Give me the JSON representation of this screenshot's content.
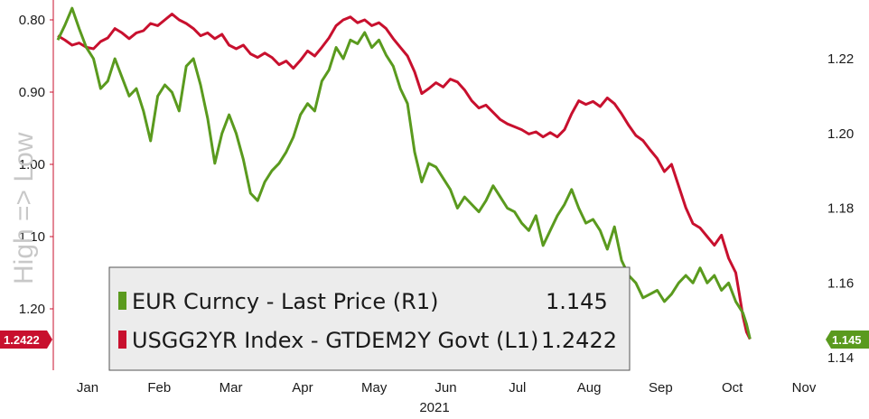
{
  "chart_data": {
    "type": "line",
    "ylabel_left": "High => Low",
    "xlabel": "2021",
    "x_ticks": [
      "Jan",
      "Feb",
      "Mar",
      "Apr",
      "May",
      "Jun",
      "Jul",
      "Aug",
      "Sep",
      "Oct",
      "Nov"
    ],
    "left_axis": {
      "ticks": [
        "0.80",
        "0.90",
        "1.00",
        "1.10",
        "1.20"
      ],
      "inverted": true,
      "range": [
        0.76,
        1.27
      ]
    },
    "right_axis": {
      "ticks": [
        "1.22",
        "1.20",
        "1.18",
        "1.16",
        "1.14"
      ],
      "range": [
        1.137,
        1.237
      ]
    },
    "series": [
      {
        "name": "EUR Curncy - Last Price (R1)",
        "axis": "right",
        "color": "#5a9a1e",
        "last_value": "1.145",
        "values": [
          [
            0,
            1.225
          ],
          [
            0.1,
            1.229
          ],
          [
            0.2,
            1.2335
          ],
          [
            0.3,
            1.228
          ],
          [
            0.4,
            1.223
          ],
          [
            0.5,
            1.22
          ],
          [
            0.6,
            1.212
          ],
          [
            0.7,
            1.214
          ],
          [
            0.8,
            1.22
          ],
          [
            0.9,
            1.215
          ],
          [
            1.0,
            1.21
          ],
          [
            1.1,
            1.212
          ],
          [
            1.2,
            1.206
          ],
          [
            1.3,
            1.198
          ],
          [
            1.4,
            1.21
          ],
          [
            1.5,
            1.213
          ],
          [
            1.6,
            1.211
          ],
          [
            1.7,
            1.206
          ],
          [
            1.8,
            1.218
          ],
          [
            1.9,
            1.22
          ],
          [
            2.0,
            1.213
          ],
          [
            2.1,
            1.204
          ],
          [
            2.2,
            1.192
          ],
          [
            2.3,
            1.2
          ],
          [
            2.4,
            1.205
          ],
          [
            2.5,
            1.2
          ],
          [
            2.6,
            1.193
          ],
          [
            2.7,
            1.184
          ],
          [
            2.8,
            1.182
          ],
          [
            2.9,
            1.187
          ],
          [
            3.0,
            1.19
          ],
          [
            3.1,
            1.192
          ],
          [
            3.2,
            1.195
          ],
          [
            3.3,
            1.199
          ],
          [
            3.4,
            1.205
          ],
          [
            3.5,
            1.208
          ],
          [
            3.6,
            1.206
          ],
          [
            3.7,
            1.214
          ],
          [
            3.8,
            1.217
          ],
          [
            3.9,
            1.223
          ],
          [
            4.0,
            1.22
          ],
          [
            4.1,
            1.225
          ],
          [
            4.2,
            1.224
          ],
          [
            4.3,
            1.227
          ],
          [
            4.4,
            1.223
          ],
          [
            4.5,
            1.225
          ],
          [
            4.6,
            1.221
          ],
          [
            4.7,
            1.218
          ],
          [
            4.8,
            1.212
          ],
          [
            4.9,
            1.208
          ],
          [
            5.0,
            1.195
          ],
          [
            5.1,
            1.187
          ],
          [
            5.2,
            1.192
          ],
          [
            5.3,
            1.191
          ],
          [
            5.4,
            1.188
          ],
          [
            5.5,
            1.185
          ],
          [
            5.6,
            1.18
          ],
          [
            5.7,
            1.183
          ],
          [
            5.8,
            1.181
          ],
          [
            5.9,
            1.179
          ],
          [
            6.0,
            1.182
          ],
          [
            6.1,
            1.186
          ],
          [
            6.2,
            1.183
          ],
          [
            6.3,
            1.18
          ],
          [
            6.4,
            1.179
          ],
          [
            6.5,
            1.176
          ],
          [
            6.6,
            1.174
          ],
          [
            6.7,
            1.178
          ],
          [
            6.8,
            1.17
          ],
          [
            6.9,
            1.174
          ],
          [
            7.0,
            1.178
          ],
          [
            7.1,
            1.181
          ],
          [
            7.2,
            1.185
          ],
          [
            7.3,
            1.18
          ],
          [
            7.4,
            1.176
          ],
          [
            7.5,
            1.177
          ],
          [
            7.6,
            1.174
          ],
          [
            7.7,
            1.169
          ],
          [
            7.8,
            1.175
          ],
          [
            7.9,
            1.166
          ],
          [
            8.0,
            1.162
          ],
          [
            8.1,
            1.16
          ],
          [
            8.2,
            1.156
          ],
          [
            8.3,
            1.157
          ],
          [
            8.4,
            1.158
          ],
          [
            8.5,
            1.155
          ],
          [
            8.6,
            1.157
          ],
          [
            8.7,
            1.16
          ],
          [
            8.8,
            1.162
          ],
          [
            8.9,
            1.16
          ],
          [
            9.0,
            1.164
          ],
          [
            9.1,
            1.16
          ],
          [
            9.2,
            1.162
          ],
          [
            9.3,
            1.158
          ],
          [
            9.4,
            1.16
          ],
          [
            9.5,
            1.155
          ],
          [
            9.6,
            1.152
          ],
          [
            9.65,
            1.149
          ],
          [
            9.7,
            1.145
          ]
        ]
      },
      {
        "name": "USGG2YR Index - GTDEM2Y Govt (L1)",
        "axis": "left",
        "color": "#c8102e",
        "last_value": "1.2422",
        "values": [
          [
            0,
            0.822
          ],
          [
            0.1,
            0.828
          ],
          [
            0.2,
            0.835
          ],
          [
            0.3,
            0.832
          ],
          [
            0.4,
            0.838
          ],
          [
            0.5,
            0.84
          ],
          [
            0.6,
            0.83
          ],
          [
            0.7,
            0.825
          ],
          [
            0.8,
            0.812
          ],
          [
            0.9,
            0.818
          ],
          [
            1.0,
            0.826
          ],
          [
            1.1,
            0.818
          ],
          [
            1.2,
            0.815
          ],
          [
            1.3,
            0.805
          ],
          [
            1.4,
            0.808
          ],
          [
            1.5,
            0.8
          ],
          [
            1.6,
            0.792
          ],
          [
            1.7,
            0.8
          ],
          [
            1.8,
            0.805
          ],
          [
            1.9,
            0.812
          ],
          [
            2.0,
            0.822
          ],
          [
            2.1,
            0.818
          ],
          [
            2.2,
            0.826
          ],
          [
            2.3,
            0.82
          ],
          [
            2.4,
            0.835
          ],
          [
            2.5,
            0.84
          ],
          [
            2.6,
            0.835
          ],
          [
            2.7,
            0.847
          ],
          [
            2.8,
            0.852
          ],
          [
            2.9,
            0.846
          ],
          [
            3.0,
            0.852
          ],
          [
            3.1,
            0.862
          ],
          [
            3.2,
            0.857
          ],
          [
            3.3,
            0.867
          ],
          [
            3.4,
            0.856
          ],
          [
            3.5,
            0.843
          ],
          [
            3.6,
            0.85
          ],
          [
            3.7,
            0.838
          ],
          [
            3.8,
            0.825
          ],
          [
            3.9,
            0.808
          ],
          [
            4.0,
            0.8
          ],
          [
            4.1,
            0.796
          ],
          [
            4.2,
            0.804
          ],
          [
            4.3,
            0.8
          ],
          [
            4.4,
            0.808
          ],
          [
            4.5,
            0.804
          ],
          [
            4.6,
            0.812
          ],
          [
            4.7,
            0.826
          ],
          [
            4.8,
            0.838
          ],
          [
            4.9,
            0.85
          ],
          [
            5.0,
            0.872
          ],
          [
            5.1,
            0.902
          ],
          [
            5.2,
            0.895
          ],
          [
            5.3,
            0.887
          ],
          [
            5.4,
            0.893
          ],
          [
            5.5,
            0.882
          ],
          [
            5.6,
            0.886
          ],
          [
            5.7,
            0.897
          ],
          [
            5.8,
            0.912
          ],
          [
            5.9,
            0.922
          ],
          [
            6.0,
            0.918
          ],
          [
            6.1,
            0.928
          ],
          [
            6.2,
            0.938
          ],
          [
            6.3,
            0.944
          ],
          [
            6.4,
            0.948
          ],
          [
            6.5,
            0.952
          ],
          [
            6.6,
            0.958
          ],
          [
            6.7,
            0.955
          ],
          [
            6.8,
            0.962
          ],
          [
            6.9,
            0.956
          ],
          [
            7.0,
            0.962
          ],
          [
            7.1,
            0.952
          ],
          [
            7.2,
            0.93
          ],
          [
            7.3,
            0.912
          ],
          [
            7.4,
            0.917
          ],
          [
            7.5,
            0.913
          ],
          [
            7.6,
            0.92
          ],
          [
            7.7,
            0.908
          ],
          [
            7.8,
            0.916
          ],
          [
            7.9,
            0.93
          ],
          [
            8.0,
            0.946
          ],
          [
            8.1,
            0.96
          ],
          [
            8.2,
            0.967
          ],
          [
            8.3,
            0.98
          ],
          [
            8.4,
            0.992
          ],
          [
            8.5,
            1.01
          ],
          [
            8.6,
            1.0
          ],
          [
            8.7,
            1.03
          ],
          [
            8.8,
            1.06
          ],
          [
            8.9,
            1.082
          ],
          [
            9.0,
            1.088
          ],
          [
            9.1,
            1.1
          ],
          [
            9.2,
            1.112
          ],
          [
            9.3,
            1.098
          ],
          [
            9.4,
            1.13
          ],
          [
            9.5,
            1.15
          ],
          [
            9.55,
            1.18
          ],
          [
            9.6,
            1.21
          ],
          [
            9.65,
            1.232
          ],
          [
            9.7,
            1.242
          ]
        ]
      }
    ]
  }
}
